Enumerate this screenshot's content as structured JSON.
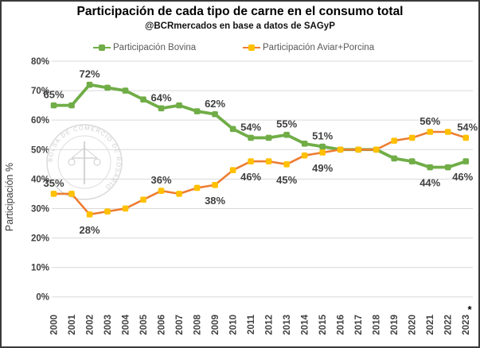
{
  "title": "Participación de cada tipo de carne en el consumo total",
  "subtitle": "@BCRmercados en base a datos de SAGyP",
  "watermark": {
    "text": "BOLSA DE COMERCIO DE ROSARIO",
    "symbol": "scales-caduceus"
  },
  "footnote_asterisk": "*",
  "chart_data": {
    "type": "line",
    "title": "Participación de cada tipo de carne en el consumo total",
    "subtitle": "@BCRmercados en base a datos de SAGyP",
    "xlabel": "",
    "ylabel": "Participación %",
    "ylim": [
      0,
      80
    ],
    "grid": true,
    "legend_position": "top",
    "grid_color": "#D9D9D9",
    "tick_color": "#404040",
    "label_color": "#404040",
    "yticks": {
      "values": [
        0,
        10,
        20,
        30,
        40,
        50,
        60,
        70,
        80
      ],
      "labels": [
        "0%",
        "10%",
        "20%",
        "30%",
        "40%",
        "50%",
        "60%",
        "70%",
        "80%"
      ]
    },
    "categories": [
      "2000",
      "2001",
      "2002",
      "2003",
      "2004",
      "2005",
      "2006",
      "2007",
      "2008",
      "2009",
      "2010",
      "2011",
      "2012",
      "2013",
      "2014",
      "2015",
      "2016",
      "2017",
      "2018",
      "2019",
      "2020",
      "2021",
      "2022",
      "2023"
    ],
    "series": [
      {
        "name": "Participación Bovina",
        "line_color": "#70AD47",
        "marker_color": "#70AD47",
        "values": [
          65,
          65,
          72,
          71,
          70,
          67,
          64,
          65,
          63,
          62,
          57,
          54,
          54,
          55,
          52,
          51,
          50,
          50,
          50,
          47,
          46,
          44,
          44,
          46
        ]
      },
      {
        "name": "Participación Aviar+Porcina",
        "line_color": "#ED7D31",
        "marker_color": "#FFC000",
        "values": [
          35,
          35,
          28,
          29,
          30,
          33,
          36,
          35,
          37,
          38,
          43,
          46,
          46,
          45,
          48,
          49,
          50,
          50,
          50,
          53,
          54,
          56,
          56,
          54
        ]
      }
    ],
    "data_labels": [
      {
        "series": 0,
        "year": "2000",
        "text": "65%",
        "pos": "above",
        "dx": 0
      },
      {
        "series": 0,
        "year": "2002",
        "text": "72%",
        "pos": "above",
        "dx": 0
      },
      {
        "series": 0,
        "year": "2006",
        "text": "64%",
        "pos": "above",
        "dx": 0
      },
      {
        "series": 0,
        "year": "2009",
        "text": "62%",
        "pos": "above",
        "dx": 0
      },
      {
        "series": 0,
        "year": "2011",
        "text": "54%",
        "pos": "above",
        "dx": 0
      },
      {
        "series": 0,
        "year": "2013",
        "text": "55%",
        "pos": "above",
        "dx": 0
      },
      {
        "series": 0,
        "year": "2015",
        "text": "51%",
        "pos": "above",
        "dx": 0
      },
      {
        "series": 0,
        "year": "2021",
        "text": "44%",
        "pos": "below",
        "dx": 0
      },
      {
        "series": 0,
        "year": "2023",
        "text": "46%",
        "pos": "below",
        "dx": -4
      },
      {
        "series": 1,
        "year": "2000",
        "text": "35%",
        "pos": "above",
        "dx": 0
      },
      {
        "series": 1,
        "year": "2002",
        "text": "28%",
        "pos": "below",
        "dx": 0
      },
      {
        "series": 1,
        "year": "2006",
        "text": "36%",
        "pos": "above",
        "dx": 0
      },
      {
        "series": 1,
        "year": "2009",
        "text": "38%",
        "pos": "below",
        "dx": 0
      },
      {
        "series": 1,
        "year": "2011",
        "text": "46%",
        "pos": "below",
        "dx": 0
      },
      {
        "series": 1,
        "year": "2013",
        "text": "45%",
        "pos": "below",
        "dx": 0
      },
      {
        "series": 1,
        "year": "2015",
        "text": "49%",
        "pos": "below",
        "dx": 0
      },
      {
        "series": 1,
        "year": "2021",
        "text": "56%",
        "pos": "above",
        "dx": 0
      },
      {
        "series": 1,
        "year": "2023",
        "text": "54%",
        "pos": "above",
        "dx": 2
      }
    ]
  }
}
